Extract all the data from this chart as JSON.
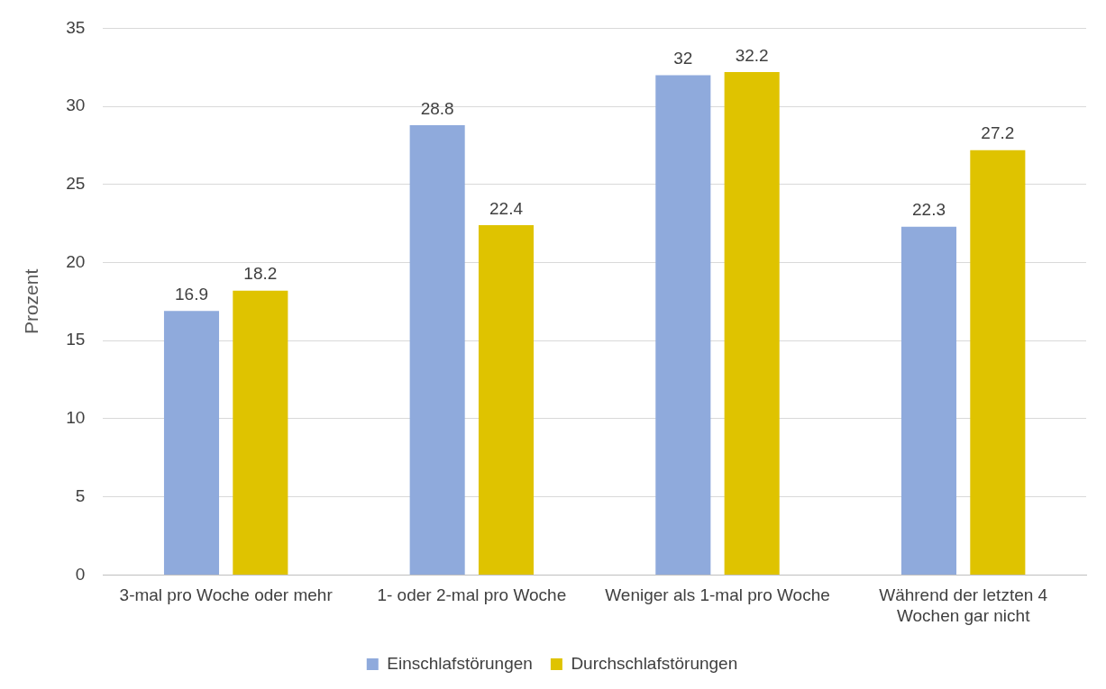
{
  "chart_data": {
    "type": "bar",
    "ylabel": "Prozent",
    "categories": [
      "3-mal pro Woche oder mehr",
      "1- oder 2-mal pro Woche",
      "Weniger als 1-mal pro Woche",
      "Während der letzten 4 Wochen gar nicht"
    ],
    "series": [
      {
        "name": "Einschlafstörungen",
        "color": "#8faadc",
        "values": [
          16.9,
          28.8,
          32,
          22.3
        ]
      },
      {
        "name": "Durchschlafstörungen",
        "color": "#dfc300",
        "values": [
          18.2,
          22.4,
          32.2,
          27.2
        ]
      }
    ],
    "ylim": [
      0,
      35
    ],
    "yticks": [
      0,
      5,
      10,
      15,
      20,
      25,
      30,
      35
    ],
    "grid": "y",
    "legend": "bottom",
    "data_labels": true
  }
}
